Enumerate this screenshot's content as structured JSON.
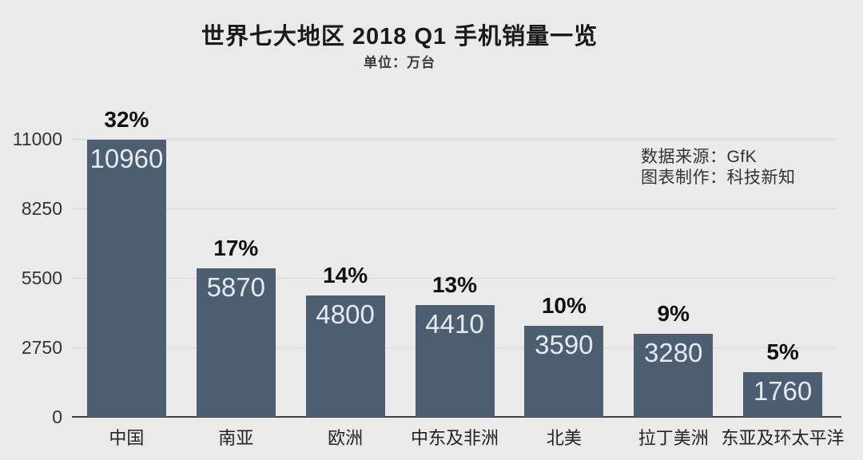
{
  "title": "世界七大地区 2018 Q1 手机销量一览",
  "subtitle": "单位：万台",
  "annotation": {
    "line1": "数据来源：GfK",
    "line2": "图表制作：科技新知"
  },
  "chart_data": {
    "type": "bar",
    "title": "世界七大地区 2018 Q1 手机销量一览",
    "unit_label": "单位：万台",
    "categories": [
      "中国",
      "南亚",
      "欧洲",
      "中东及非洲",
      "北美",
      "拉丁美洲",
      "东亚及环太平洋"
    ],
    "values": [
      10960,
      5870,
      4800,
      4410,
      3590,
      3280,
      1760
    ],
    "percent_labels": [
      "32%",
      "17%",
      "14%",
      "13%",
      "10%",
      "9%",
      "5%"
    ],
    "ylim": [
      0,
      11000
    ],
    "yticks": [
      0,
      2750,
      5500,
      8250,
      11000
    ],
    "grid": true,
    "legend": "none",
    "colors": {
      "background": "#eaeaea",
      "bar": "#4d5e70",
      "value_label": "#e3eaf1",
      "gridline": "#d8d8d8",
      "axis_line": "#3f4348"
    }
  }
}
